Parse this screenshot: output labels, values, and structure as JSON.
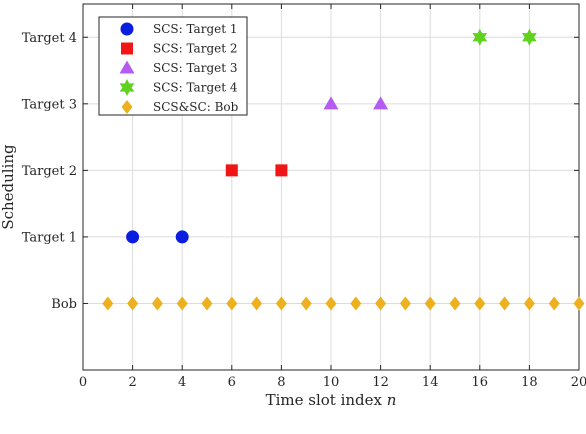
{
  "chart_data": {
    "type": "scatter",
    "title": "",
    "xlabel": "Time slot index",
    "xlabel_var": "n",
    "ylabel": "Scheduling",
    "xlim": [
      0,
      20
    ],
    "ylim": [
      -1,
      4.5
    ],
    "xticks": [
      0,
      2,
      4,
      6,
      8,
      10,
      12,
      14,
      16,
      18,
      20
    ],
    "yticks": [
      {
        "value": 0,
        "label": "Bob"
      },
      {
        "value": 1,
        "label": "Target 1"
      },
      {
        "value": 2,
        "label": "Target 2"
      },
      {
        "value": 3,
        "label": "Target 3"
      },
      {
        "value": 4,
        "label": "Target 4"
      }
    ],
    "grid": true,
    "legend_position": "top-left",
    "series": [
      {
        "name": "SCS: Target 1",
        "marker": "circle",
        "color": "#0a1ee0",
        "points": [
          [
            2,
            1
          ],
          [
            4,
            1
          ]
        ]
      },
      {
        "name": "SCS: Target 2",
        "marker": "square",
        "color": "#f01616",
        "points": [
          [
            6,
            2
          ],
          [
            8,
            2
          ]
        ]
      },
      {
        "name": "SCS: Target 3",
        "marker": "triangle",
        "color": "#b55cf0",
        "points": [
          [
            10,
            3
          ],
          [
            12,
            3
          ]
        ]
      },
      {
        "name": "SCS: Target 4",
        "marker": "hexagram",
        "color": "#5fd11e",
        "points": [
          [
            16,
            4
          ],
          [
            18,
            4
          ]
        ]
      },
      {
        "name": "SCS&SC: Bob",
        "marker": "diamond",
        "color": "#edb120",
        "points": [
          [
            1,
            0
          ],
          [
            2,
            0
          ],
          [
            3,
            0
          ],
          [
            4,
            0
          ],
          [
            5,
            0
          ],
          [
            6,
            0
          ],
          [
            7,
            0
          ],
          [
            8,
            0
          ],
          [
            9,
            0
          ],
          [
            10,
            0
          ],
          [
            11,
            0
          ],
          [
            12,
            0
          ],
          [
            13,
            0
          ],
          [
            14,
            0
          ],
          [
            15,
            0
          ],
          [
            16,
            0
          ],
          [
            17,
            0
          ],
          [
            18,
            0
          ],
          [
            19,
            0
          ],
          [
            20,
            0
          ]
        ]
      }
    ]
  }
}
